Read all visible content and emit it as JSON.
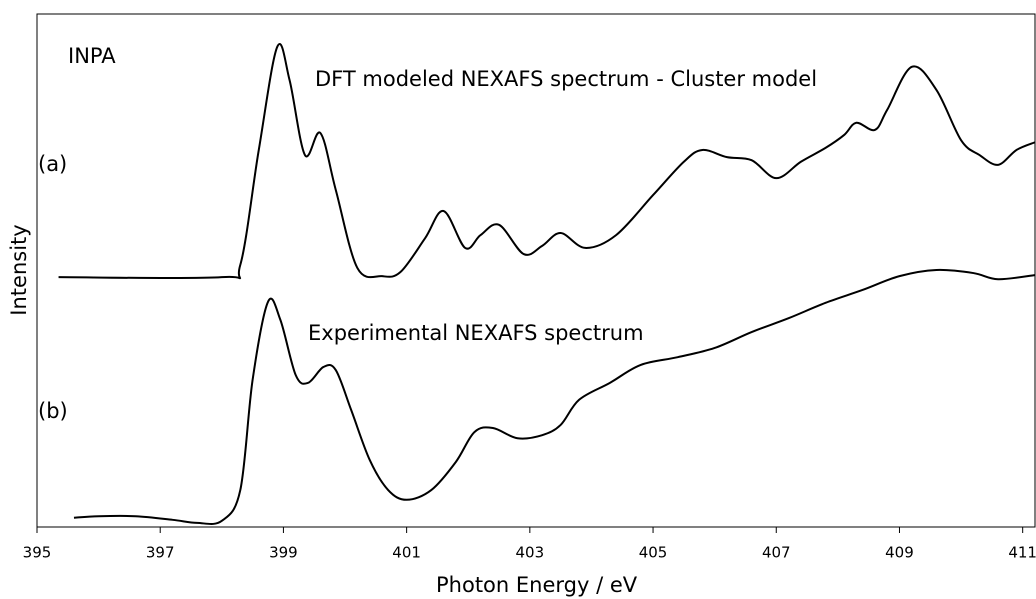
{
  "chart_data": {
    "type": "line",
    "xlabel": "Photon Energy / eV",
    "ylabel": "Intensity",
    "xlim": [
      395,
      411.2
    ],
    "xticks": [
      395,
      397,
      399,
      401,
      403,
      405,
      407,
      409,
      411
    ],
    "ylim": [
      0,
      100
    ],
    "annotations": [
      "INPA",
      "DFT modeled NEXAFS spectrum - Cluster model",
      "(a)",
      "Experimental NEXAFS spectrum",
      "(b)"
    ],
    "series": [
      {
        "color": "#000000",
        "x": [
          395.35,
          398.0,
          398.3,
          398.6,
          398.9,
          399.1,
          399.35,
          399.6,
          399.85,
          400.2,
          400.6,
          400.9,
          401.3,
          401.6,
          401.95,
          402.2,
          402.5,
          402.9,
          403.2,
          403.5,
          403.9,
          404.4,
          405.0,
          405.5,
          405.8,
          406.2,
          406.6,
          407.0,
          407.4,
          407.8,
          408.1,
          408.3,
          408.6,
          408.8,
          409.2,
          409.6,
          410.0,
          410.3,
          410.6,
          410.9,
          411.2
        ],
        "values": [
          48.7,
          48.7,
          51.1,
          73.5,
          93.6,
          87.1,
          72.5,
          76.8,
          65.7,
          50.5,
          48.9,
          49.7,
          56.3,
          61.6,
          54.4,
          56.9,
          58.9,
          53.2,
          54.8,
          57.3,
          54.4,
          56.9,
          64.7,
          71.2,
          73.5,
          72.1,
          71.5,
          68.0,
          71.2,
          73.9,
          76.4,
          78.8,
          77.4,
          81.3,
          89.7,
          85.2,
          75.4,
          72.5,
          70.6,
          73.5,
          75.0
        ]
      },
      {
        "color": "#000000",
        "x": [
          395.6,
          396.0,
          396.6,
          397.2,
          397.6,
          398.0,
          398.3,
          398.5,
          398.75,
          398.95,
          399.2,
          399.4,
          399.65,
          399.85,
          400.1,
          400.4,
          400.7,
          401.0,
          401.4,
          401.8,
          402.1,
          402.4,
          402.8,
          403.2,
          403.5,
          403.8,
          404.3,
          404.8,
          405.4,
          406.0,
          406.6,
          407.2,
          407.8,
          408.4,
          409.0,
          409.6,
          410.2,
          410.6,
          411.2
        ],
        "values": [
          1.8,
          2.1,
          2.1,
          1.4,
          0.8,
          1.2,
          7.2,
          28.7,
          43.9,
          40.4,
          29.6,
          28.1,
          31.2,
          30.6,
          22.8,
          13.1,
          7.2,
          5.3,
          7.2,
          12.7,
          18.5,
          19.3,
          17.3,
          17.9,
          19.9,
          24.8,
          28.1,
          31.6,
          33.1,
          34.9,
          38.0,
          40.7,
          43.7,
          46.2,
          48.9,
          50.1,
          49.5,
          48.3,
          49.1
        ]
      }
    ]
  }
}
